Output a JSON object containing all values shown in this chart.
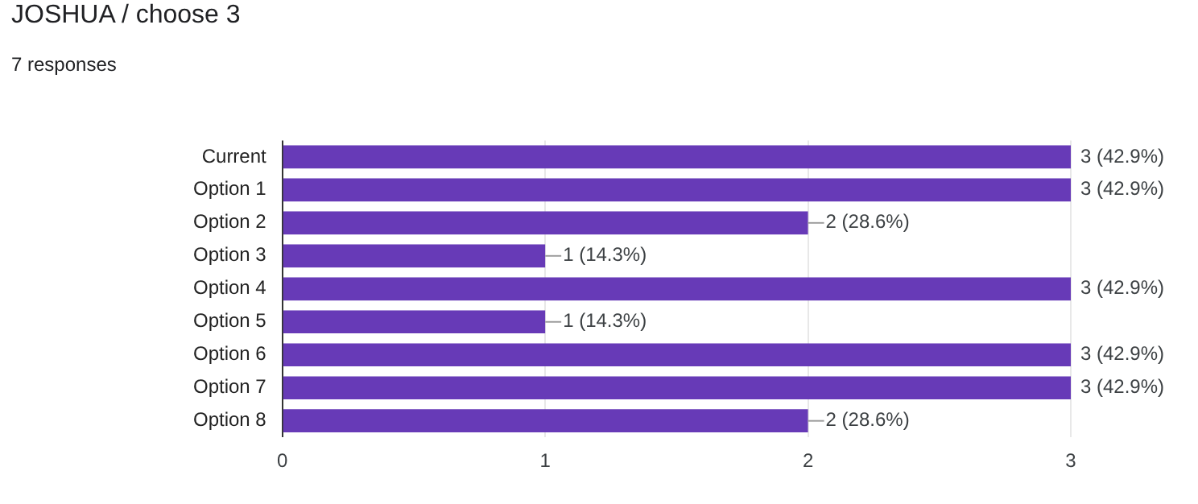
{
  "chart_data": {
    "type": "bar",
    "orientation": "horizontal",
    "title": "JOSHUA / choose 3",
    "subtitle": "7 responses",
    "categories": [
      "Current",
      "Option 1",
      "Option 2",
      "Option 3",
      "Option 4",
      "Option 5",
      "Option 6",
      "Option 7",
      "Option 8"
    ],
    "values": [
      3,
      3,
      2,
      1,
      3,
      1,
      3,
      3,
      2
    ],
    "value_labels": [
      "3 (42.9%)",
      "3 (42.9%)",
      "2 (28.6%)",
      "1 (14.3%)",
      "3 (42.9%)",
      "1 (14.3%)",
      "3 (42.9%)",
      "3 (42.9%)",
      "2 (28.6%)"
    ],
    "color": "#673ab7",
    "xlim": [
      0,
      3
    ],
    "xticks": [
      0,
      1,
      2,
      3
    ],
    "grid": "x",
    "legend": false
  }
}
